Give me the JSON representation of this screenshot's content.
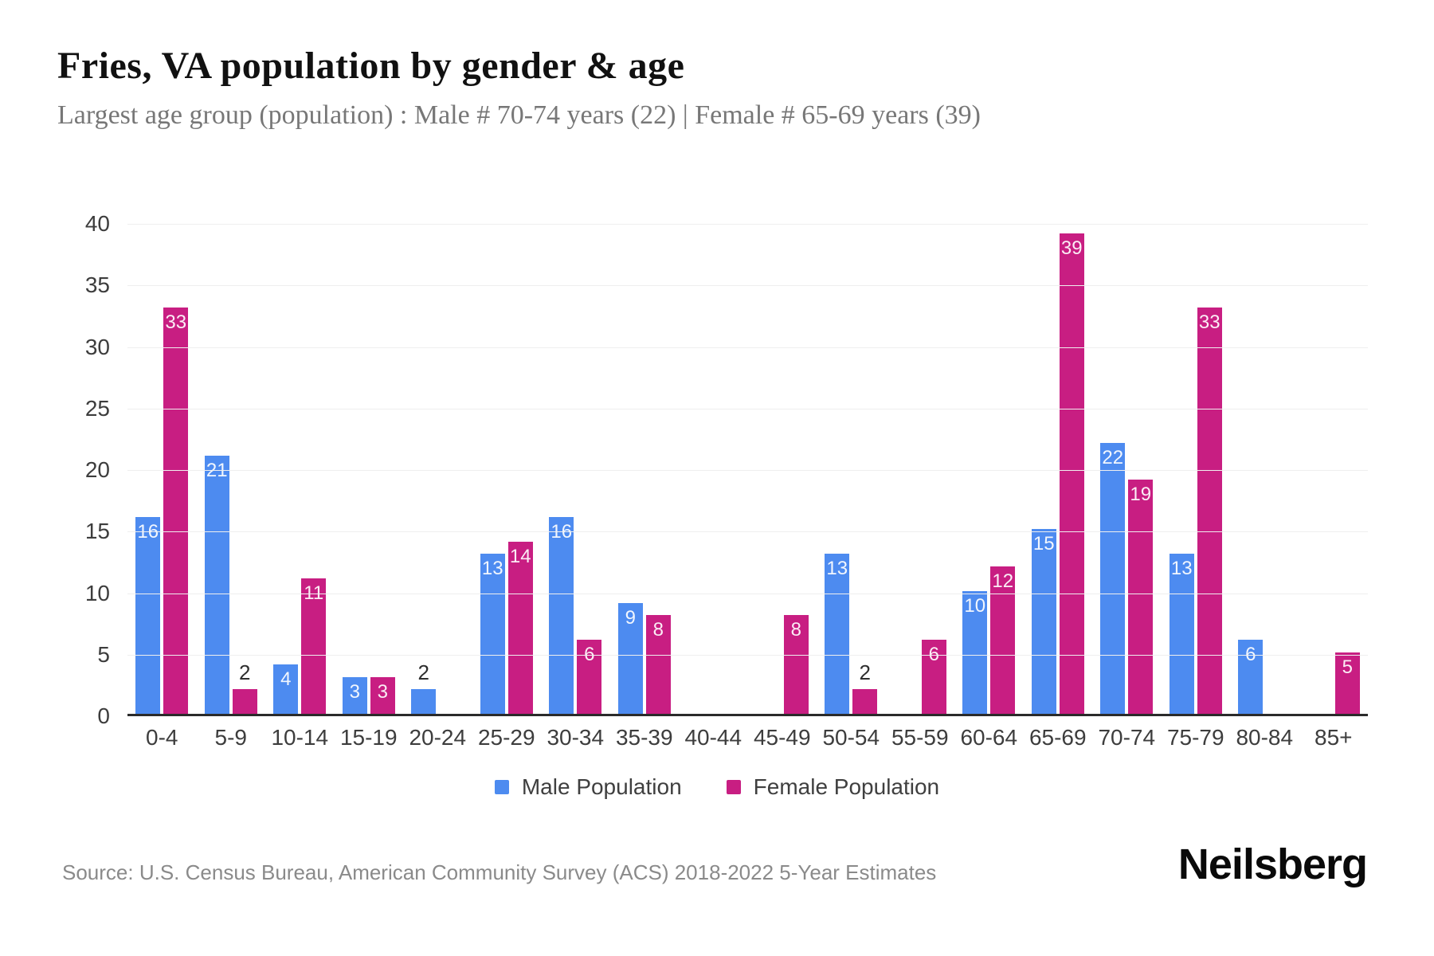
{
  "title": "Fries, VA population by gender & age",
  "subtitle": "Largest age group (population) : Male # 70-74 years (22) | Female # 65-69 years (39)",
  "source": "Source: U.S. Census Bureau, American Community Survey (ACS) 2018-2022 5-Year Estimates",
  "brand": "Neilsberg",
  "colors": {
    "male": "#4d8bf0",
    "female": "#c81e82",
    "gridline": "#efefef",
    "axis": "#2b2b2b",
    "axis_label": "#3d3d3d",
    "title": "#111111",
    "subtitle": "#777777",
    "source": "#8a8a8a"
  },
  "legend": [
    {
      "key": "male",
      "label": "Male Population",
      "color": "#4d8bf0"
    },
    {
      "key": "female",
      "label": "Female Population",
      "color": "#c81e82"
    }
  ],
  "chart_data": {
    "type": "bar",
    "title": "Fries, VA population by gender & age",
    "categories": [
      "0-4",
      "5-9",
      "10-14",
      "15-19",
      "20-24",
      "25-29",
      "30-34",
      "35-39",
      "40-44",
      "45-49",
      "50-54",
      "55-59",
      "60-64",
      "65-69",
      "70-74",
      "75-79",
      "80-84",
      "85+"
    ],
    "series": [
      {
        "name": "Male Population",
        "key": "male",
        "values": [
          16,
          21,
          4,
          3,
          2,
          13,
          16,
          9,
          0,
          0,
          13,
          0,
          10,
          15,
          22,
          13,
          6,
          0
        ]
      },
      {
        "name": "Female Population",
        "key": "female",
        "values": [
          33,
          2,
          11,
          3,
          0,
          14,
          6,
          8,
          0,
          8,
          2,
          6,
          12,
          39,
          19,
          33,
          0,
          5
        ]
      }
    ],
    "xlabel": "",
    "ylabel": "",
    "ylim": [
      0,
      40
    ],
    "yticks": [
      0,
      5,
      10,
      15,
      20,
      25,
      30,
      35,
      40
    ],
    "grid": true,
    "legend_position": "bottom",
    "value_labels": true
  }
}
